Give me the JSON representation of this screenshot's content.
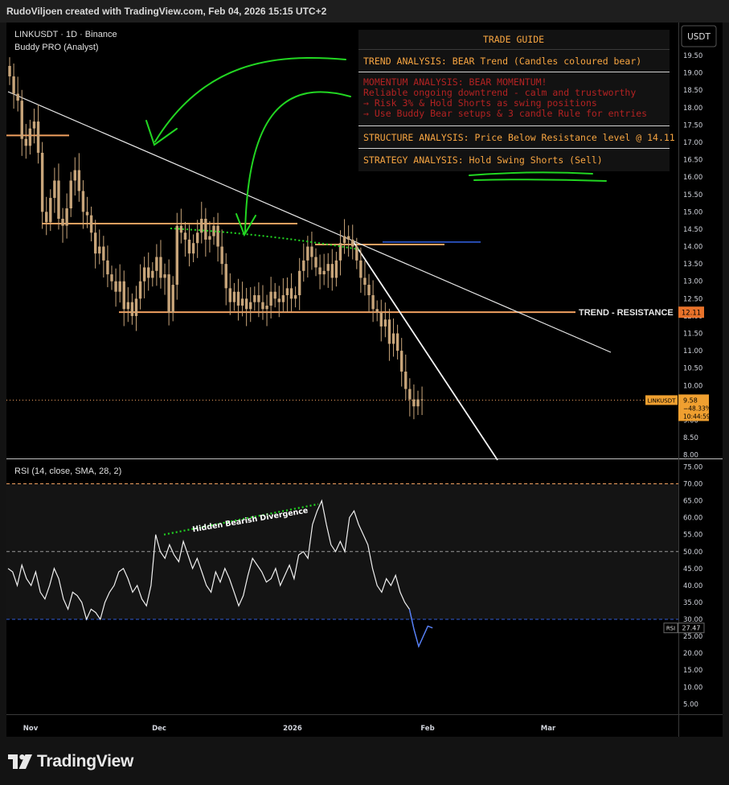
{
  "header": {
    "title": "RudoViljoen created with TradingView.com, Feb 04, 2026 15:15 UTC+2"
  },
  "symbol": {
    "line1": "LINKUSDT · 1D · Binance",
    "line2": "Buddy PRO (Analyst)",
    "currency": "USDT"
  },
  "trade_guide": {
    "title": "TRADE GUIDE",
    "trend": "TREND ANALYSIS: BEAR Trend (Candles coloured bear)",
    "momentum": [
      "MOMENTUM ANALYSIS: BEAR MOMENTUM!",
      " Reliable ongoing downtrend - calm and trustworthy",
      "→ Risk 3% & Hold Shorts as swing positions",
      "→ Use Buddy Bear setups & 3 candle Rule for entries"
    ],
    "structure": "STRUCTURE ANALYSIS: Price Below Resistance level @ 14.11",
    "strategy": "STRATEGY ANALYSIS: Hold Swing Shorts (Sell)"
  },
  "annotations": {
    "trend_resistance": "TREND - RESISTANCE",
    "divergence": "Hidden Bearish Divergence"
  },
  "price_badges": {
    "resistance": "12.11",
    "last_symbol": "LINKUSDT",
    "last_price": "9.58",
    "last_change": "−48.33%",
    "countdown": "10:44:59"
  },
  "rsi": {
    "label": "RSI (14, close, SMA, 28, 2)",
    "badge_name": "RSI",
    "badge_value": "27.47"
  },
  "footer": {
    "brand": "TradingView"
  },
  "colors": {
    "bg": "#000000",
    "candle": "#c8a57a",
    "level": "#f0a060",
    "blue_level": "#2f5bd6",
    "green": "#22d622",
    "orange_text": "#f7a541",
    "red_text": "#b32222"
  },
  "chart_data": [
    {
      "type": "candlestick",
      "symbol": "LINKUSDT",
      "interval": "1D",
      "x_tick_labels": [
        "Nov",
        "Dec",
        "2026",
        "Feb",
        "Mar"
      ],
      "y_tick_labels": [
        "20.00",
        "19.50",
        "19.00",
        "18.50",
        "18.00",
        "17.50",
        "17.00",
        "16.50",
        "16.00",
        "15.50",
        "15.00",
        "14.50",
        "14.00",
        "13.50",
        "13.00",
        "12.50",
        "12.00",
        "11.50",
        "11.00",
        "10.50",
        "10.00",
        "9.50",
        "9.00",
        "8.50",
        "8.00"
      ],
      "ylim": [
        7.9,
        20.45
      ],
      "close": [
        18.9,
        18.4,
        18.2,
        17.1,
        16.9,
        17.4,
        17.6,
        16.7,
        15.0,
        14.7,
        15.4,
        15.9,
        14.8,
        14.6,
        15.1,
        15.9,
        16.2,
        15.6,
        15.0,
        14.9,
        14.4,
        13.8,
        14.0,
        13.6,
        13.2,
        13.0,
        12.7,
        13.0,
        12.2,
        12.4,
        12.0,
        12.5,
        13.0,
        13.4,
        13.1,
        13.3,
        13.7,
        13.1,
        13.2,
        12.1,
        12.9,
        14.6,
        14.4,
        14.2,
        13.8,
        14.1,
        14.4,
        14.8,
        14.2,
        14.3,
        14.6,
        14.0,
        13.5,
        12.8,
        12.4,
        12.7,
        12.3,
        12.5,
        12.2,
        12.4,
        12.6,
        12.4,
        12.2,
        12.3,
        12.7,
        12.5,
        12.4,
        12.6,
        12.8,
        12.5,
        12.6,
        13.3,
        13.6,
        14.0,
        13.7,
        13.4,
        13.2,
        13.3,
        13.5,
        13.1,
        13.6,
        14.1,
        14.3,
        14.2,
        14.0,
        13.6,
        13.1,
        12.9,
        12.6,
        12.2,
        12.1,
        11.7,
        11.9,
        11.2,
        11.5,
        11.0,
        10.4,
        9.9,
        9.6,
        9.4,
        9.6,
        9.58
      ],
      "levels": [
        {
          "label": "",
          "value": 17.2
        },
        {
          "label": "",
          "value": 14.66
        },
        {
          "label": "",
          "value": 14.06
        },
        {
          "label": "TREND - RESISTANCE",
          "value": 12.11
        }
      ],
      "last_price": 9.58
    },
    {
      "type": "line",
      "name": "RSI",
      "y_tick_labels": [
        "75.00",
        "70.00",
        "65.00",
        "60.00",
        "55.00",
        "50.00",
        "45.00",
        "40.00",
        "35.00",
        "30.00",
        "25.00",
        "20.00",
        "15.00",
        "10.00",
        "5.00"
      ],
      "ylim": [
        2,
        77
      ],
      "bands": [
        70,
        50,
        30
      ],
      "values": [
        45,
        44,
        40,
        46,
        42,
        40,
        44,
        38,
        36,
        40,
        45,
        42,
        36,
        33,
        38,
        37,
        35,
        30,
        33,
        32,
        30,
        35,
        38,
        40,
        44,
        45,
        42,
        38,
        40,
        36,
        34,
        40,
        55,
        50,
        48,
        52,
        49,
        47,
        53,
        49,
        45,
        48,
        44,
        40,
        38,
        44,
        41,
        45,
        42,
        38,
        34,
        37,
        43,
        48,
        46,
        44,
        41,
        42,
        45,
        40,
        43,
        46,
        42,
        49,
        50,
        48,
        58,
        62,
        65,
        58,
        52,
        50,
        53,
        50,
        60,
        62,
        58,
        55,
        52,
        45,
        40,
        38,
        42,
        40,
        43,
        38,
        35,
        33,
        27,
        22,
        25,
        28,
        27.47
      ],
      "value": 27.47
    }
  ]
}
